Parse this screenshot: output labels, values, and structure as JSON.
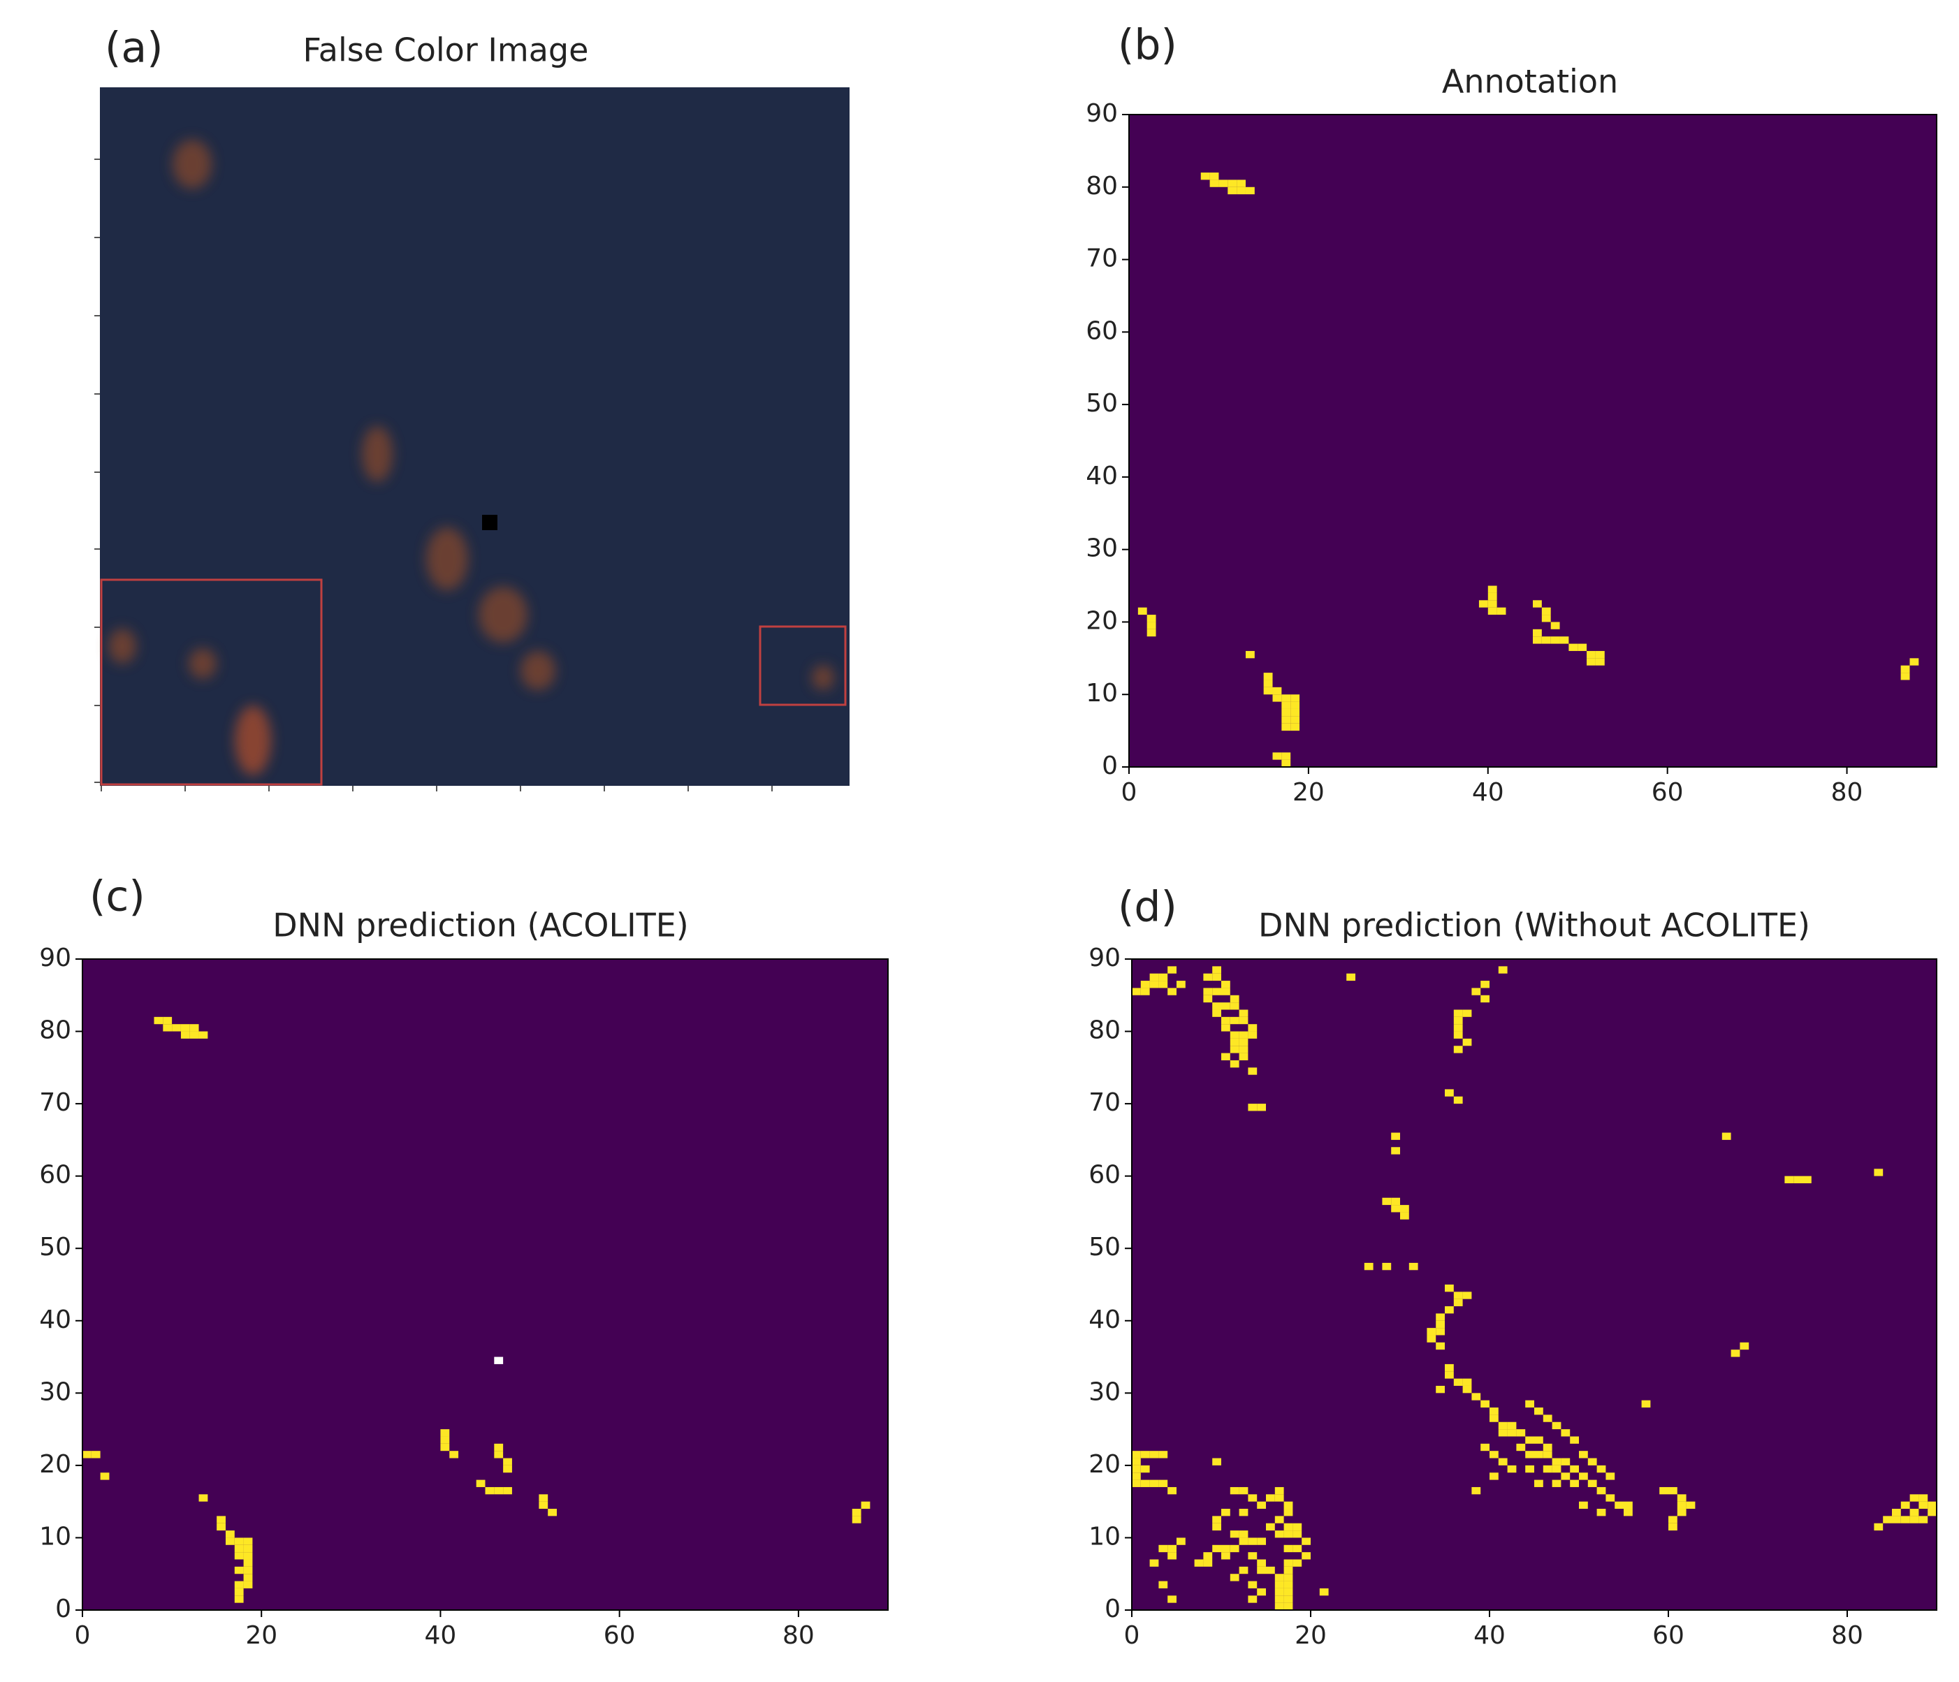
{
  "chart_data": [
    {
      "type": "image",
      "label": "(a)",
      "title": "False Color Image"
    },
    {
      "type": "heatmap",
      "label": "(b)",
      "title": "Annotation",
      "background": "#440154",
      "color": "#fde725",
      "xlim": [
        0,
        90
      ],
      "ylim": [
        0,
        90
      ],
      "xticks": [
        0,
        20,
        40,
        60,
        80
      ],
      "yticks": [
        0,
        10,
        20,
        30,
        40,
        50,
        60,
        70,
        80,
        90
      ],
      "cells": [
        [
          8,
          81
        ],
        [
          9,
          81
        ],
        [
          9,
          80
        ],
        [
          10,
          80
        ],
        [
          11,
          80
        ],
        [
          11,
          79
        ],
        [
          12,
          79
        ],
        [
          12,
          80
        ],
        [
          13,
          79
        ],
        [
          1,
          21
        ],
        [
          2,
          20
        ],
        [
          2,
          19
        ],
        [
          2,
          18
        ],
        [
          13,
          15
        ],
        [
          15,
          12
        ],
        [
          15,
          11
        ],
        [
          15,
          10
        ],
        [
          16,
          10
        ],
        [
          16,
          9
        ],
        [
          17,
          9
        ],
        [
          17,
          8
        ],
        [
          18,
          9
        ],
        [
          18,
          8
        ],
        [
          17,
          7
        ],
        [
          18,
          7
        ],
        [
          17,
          6
        ],
        [
          18,
          6
        ],
        [
          17,
          5
        ],
        [
          18,
          5
        ],
        [
          17,
          1
        ],
        [
          17,
          0
        ],
        [
          16,
          1
        ],
        [
          40,
          24
        ],
        [
          40,
          23
        ],
        [
          39,
          22
        ],
        [
          40,
          22
        ],
        [
          40,
          21
        ],
        [
          41,
          21
        ],
        [
          45,
          22
        ],
        [
          46,
          21
        ],
        [
          46,
          20
        ],
        [
          47,
          19
        ],
        [
          45,
          18
        ],
        [
          45,
          17
        ],
        [
          46,
          17
        ],
        [
          47,
          17
        ],
        [
          48,
          17
        ],
        [
          49,
          16
        ],
        [
          50,
          16
        ],
        [
          51,
          15
        ],
        [
          52,
          15
        ],
        [
          52,
          14
        ],
        [
          51,
          14
        ],
        [
          87,
          14
        ],
        [
          86,
          13
        ],
        [
          86,
          12
        ]
      ]
    },
    {
      "type": "heatmap",
      "label": "(c)",
      "title": "DNN prediction (ACOLITE)",
      "background": "#440154",
      "color": "#fde725",
      "other_color": "#ffffff",
      "xlim": [
        0,
        90
      ],
      "ylim": [
        0,
        90
      ],
      "xticks": [
        0,
        20,
        40,
        60,
        80
      ],
      "yticks": [
        0,
        10,
        20,
        30,
        40,
        50,
        60,
        70,
        80,
        90
      ],
      "cells": [
        [
          8,
          81
        ],
        [
          9,
          81
        ],
        [
          9,
          80
        ],
        [
          10,
          80
        ],
        [
          11,
          80
        ],
        [
          11,
          79
        ],
        [
          12,
          79
        ],
        [
          12,
          80
        ],
        [
          13,
          79
        ],
        [
          0,
          21
        ],
        [
          1,
          21
        ],
        [
          2,
          18
        ],
        [
          13,
          15
        ],
        [
          15,
          12
        ],
        [
          15,
          11
        ],
        [
          16,
          10
        ],
        [
          16,
          9
        ],
        [
          17,
          9
        ],
        [
          17,
          8
        ],
        [
          18,
          9
        ],
        [
          18,
          8
        ],
        [
          17,
          7
        ],
        [
          18,
          7
        ],
        [
          18,
          6
        ],
        [
          17,
          5
        ],
        [
          18,
          5
        ],
        [
          18,
          4
        ],
        [
          17,
          3
        ],
        [
          18,
          3
        ],
        [
          17,
          2
        ],
        [
          17,
          1
        ],
        [
          40,
          24
        ],
        [
          40,
          23
        ],
        [
          40,
          22
        ],
        [
          41,
          21
        ],
        [
          46,
          22
        ],
        [
          46,
          21
        ],
        [
          47,
          20
        ],
        [
          47,
          19
        ],
        [
          44,
          17
        ],
        [
          45,
          16
        ],
        [
          46,
          16
        ],
        [
          47,
          16
        ],
        [
          51,
          15
        ],
        [
          51,
          14
        ],
        [
          52,
          13
        ],
        [
          87,
          14
        ],
        [
          86,
          13
        ],
        [
          86,
          12
        ]
      ],
      "other_cells": [
        [
          46,
          34
        ]
      ]
    },
    {
      "type": "heatmap",
      "label": "(d)",
      "title": "DNN prediction (Without ACOLITE)",
      "background": "#440154",
      "color": "#fde725",
      "xlim": [
        0,
        90
      ],
      "ylim": [
        0,
        90
      ],
      "xticks": [
        0,
        20,
        40,
        60,
        80
      ],
      "yticks": [
        0,
        10,
        20,
        30,
        40,
        50,
        60,
        70,
        80,
        90
      ],
      "cells": [
        [
          0,
          85
        ],
        [
          1,
          85
        ],
        [
          1,
          86
        ],
        [
          2,
          86
        ],
        [
          2,
          87
        ],
        [
          3,
          87
        ],
        [
          3,
          86
        ],
        [
          4,
          88
        ],
        [
          4,
          85
        ],
        [
          5,
          86
        ],
        [
          9,
          88
        ],
        [
          8,
          87
        ],
        [
          9,
          87
        ],
        [
          10,
          86
        ],
        [
          8,
          85
        ],
        [
          9,
          85
        ],
        [
          10,
          85
        ],
        [
          11,
          84
        ],
        [
          8,
          84
        ],
        [
          9,
          83
        ],
        [
          10,
          83
        ],
        [
          11,
          83
        ],
        [
          12,
          82
        ],
        [
          9,
          82
        ],
        [
          10,
          81
        ],
        [
          11,
          81
        ],
        [
          12,
          81
        ],
        [
          13,
          80
        ],
        [
          10,
          80
        ],
        [
          11,
          79
        ],
        [
          12,
          79
        ],
        [
          13,
          79
        ],
        [
          11,
          78
        ],
        [
          12,
          78
        ],
        [
          11,
          77
        ],
        [
          12,
          77
        ],
        [
          10,
          76
        ],
        [
          12,
          76
        ],
        [
          11,
          75
        ],
        [
          13,
          74
        ],
        [
          13,
          69
        ],
        [
          14,
          69
        ],
        [
          24,
          87
        ],
        [
          41,
          88
        ],
        [
          39,
          86
        ],
        [
          38,
          85
        ],
        [
          39,
          84
        ],
        [
          36,
          82
        ],
        [
          37,
          82
        ],
        [
          36,
          81
        ],
        [
          36,
          80
        ],
        [
          36,
          79
        ],
        [
          37,
          78
        ],
        [
          36,
          77
        ],
        [
          35,
          71
        ],
        [
          36,
          70
        ],
        [
          29,
          65
        ],
        [
          29,
          63
        ],
        [
          28,
          56
        ],
        [
          29,
          56
        ],
        [
          29,
          55
        ],
        [
          30,
          55
        ],
        [
          30,
          54
        ],
        [
          26,
          47
        ],
        [
          28,
          47
        ],
        [
          31,
          47
        ],
        [
          66,
          65
        ],
        [
          73,
          59
        ],
        [
          74,
          59
        ],
        [
          75,
          59
        ],
        [
          83,
          60
        ],
        [
          68,
          36
        ],
        [
          67,
          35
        ],
        [
          57,
          28
        ],
        [
          35,
          44
        ],
        [
          36,
          43
        ],
        [
          37,
          43
        ],
        [
          36,
          42
        ],
        [
          35,
          41
        ],
        [
          34,
          40
        ],
        [
          34,
          39
        ],
        [
          33,
          38
        ],
        [
          34,
          38
        ],
        [
          33,
          37
        ],
        [
          34,
          36
        ],
        [
          35,
          33
        ],
        [
          35,
          32
        ],
        [
          36,
          31
        ],
        [
          37,
          31
        ],
        [
          34,
          30
        ],
        [
          37,
          30
        ],
        [
          38,
          29
        ],
        [
          39,
          28
        ],
        [
          40,
          27
        ],
        [
          40,
          26
        ],
        [
          41,
          25
        ],
        [
          42,
          25
        ],
        [
          41,
          24
        ],
        [
          42,
          24
        ],
        [
          43,
          24
        ],
        [
          44,
          23
        ],
        [
          45,
          23
        ],
        [
          46,
          22
        ],
        [
          43,
          22
        ],
        [
          44,
          21
        ],
        [
          45,
          21
        ],
        [
          46,
          21
        ],
        [
          47,
          20
        ],
        [
          48,
          20
        ],
        [
          49,
          19
        ],
        [
          46,
          19
        ],
        [
          47,
          19
        ],
        [
          48,
          18
        ],
        [
          50,
          18
        ],
        [
          51,
          17
        ],
        [
          49,
          17
        ],
        [
          52,
          16
        ],
        [
          53,
          15
        ],
        [
          54,
          14
        ],
        [
          55,
          14
        ],
        [
          52,
          13
        ],
        [
          50,
          14
        ],
        [
          44,
          28
        ],
        [
          45,
          27
        ],
        [
          46,
          26
        ],
        [
          47,
          25
        ],
        [
          48,
          24
        ],
        [
          49,
          23
        ],
        [
          50,
          21
        ],
        [
          51,
          20
        ],
        [
          52,
          19
        ],
        [
          53,
          18
        ],
        [
          47,
          17
        ],
        [
          45,
          17
        ],
        [
          44,
          19
        ],
        [
          41,
          20
        ],
        [
          42,
          19
        ],
        [
          40,
          18
        ],
        [
          38,
          16
        ],
        [
          39,
          22
        ],
        [
          40,
          21
        ],
        [
          55,
          13
        ],
        [
          59,
          16
        ],
        [
          60,
          16
        ],
        [
          61,
          15
        ],
        [
          61,
          14
        ],
        [
          62,
          14
        ],
        [
          61,
          13
        ],
        [
          60,
          12
        ],
        [
          60,
          11
        ],
        [
          0,
          21
        ],
        [
          1,
          21
        ],
        [
          2,
          21
        ],
        [
          3,
          21
        ],
        [
          0,
          20
        ],
        [
          0,
          19
        ],
        [
          1,
          19
        ],
        [
          0,
          18
        ],
        [
          0,
          17
        ],
        [
          1,
          17
        ],
        [
          2,
          17
        ],
        [
          3,
          17
        ],
        [
          4,
          16
        ],
        [
          9,
          20
        ],
        [
          11,
          16
        ],
        [
          12,
          16
        ],
        [
          13,
          15
        ],
        [
          14,
          14
        ],
        [
          15,
          15
        ],
        [
          16,
          16
        ],
        [
          16,
          15
        ],
        [
          17,
          14
        ],
        [
          17,
          13
        ],
        [
          16,
          12
        ],
        [
          15,
          11
        ],
        [
          17,
          11
        ],
        [
          18,
          11
        ],
        [
          16,
          10
        ],
        [
          17,
          10
        ],
        [
          18,
          10
        ],
        [
          19,
          9
        ],
        [
          17,
          8
        ],
        [
          18,
          8
        ],
        [
          19,
          7
        ],
        [
          17,
          6
        ],
        [
          18,
          6
        ],
        [
          17,
          5
        ],
        [
          16,
          4
        ],
        [
          17,
          4
        ],
        [
          16,
          3
        ],
        [
          17,
          3
        ],
        [
          16,
          2
        ],
        [
          17,
          2
        ],
        [
          16,
          1
        ],
        [
          17,
          1
        ],
        [
          16,
          0
        ],
        [
          17,
          0
        ],
        [
          14,
          9
        ],
        [
          13,
          9
        ],
        [
          12,
          9
        ],
        [
          11,
          8
        ],
        [
          10,
          8
        ],
        [
          9,
          8
        ],
        [
          8,
          7
        ],
        [
          8,
          6
        ],
        [
          7,
          6
        ],
        [
          10,
          7
        ],
        [
          13,
          7
        ],
        [
          14,
          6
        ],
        [
          14,
          5
        ],
        [
          15,
          5
        ],
        [
          12,
          5
        ],
        [
          11,
          4
        ],
        [
          13,
          3
        ],
        [
          14,
          2
        ],
        [
          13,
          1
        ],
        [
          5,
          9
        ],
        [
          4,
          8
        ],
        [
          3,
          8
        ],
        [
          4,
          7
        ],
        [
          2,
          6
        ],
        [
          3,
          3
        ],
        [
          9,
          11
        ],
        [
          9,
          12
        ],
        [
          10,
          13
        ],
        [
          12,
          13
        ],
        [
          11,
          10
        ],
        [
          12,
          10
        ],
        [
          21,
          2
        ],
        [
          4,
          1
        ],
        [
          83,
          11
        ],
        [
          84,
          12
        ],
        [
          85,
          13
        ],
        [
          86,
          14
        ],
        [
          87,
          15
        ],
        [
          88,
          15
        ],
        [
          89,
          14
        ],
        [
          89,
          13
        ],
        [
          88,
          12
        ],
        [
          87,
          12
        ],
        [
          86,
          12
        ],
        [
          85,
          12
        ],
        [
          88,
          14
        ],
        [
          87,
          13
        ]
      ]
    }
  ]
}
